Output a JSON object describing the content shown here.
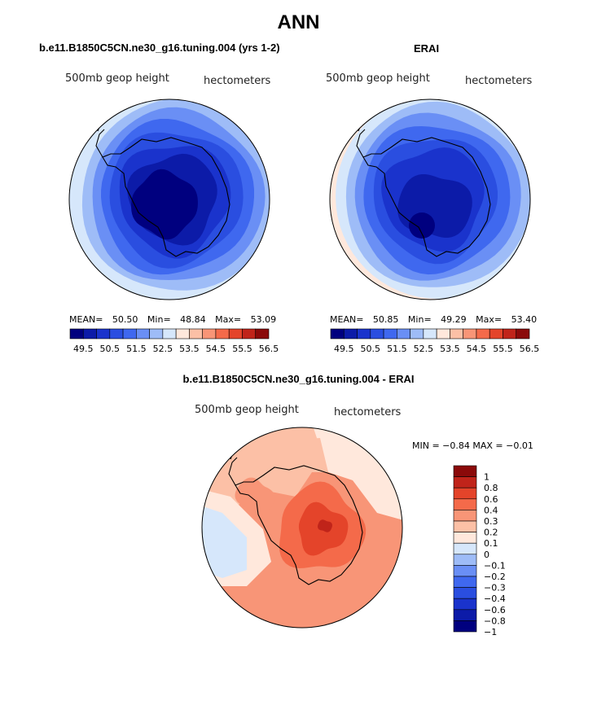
{
  "figure": {
    "title": "ANN",
    "diff_title": "b.e11.B1850C5CN.ne30_g16.tuning.004 - ERAI"
  },
  "panels": [
    {
      "id": "model",
      "title": "b.e11.B1850C5CN.ne30_g16.tuning.004 (yrs 1-2)",
      "variable": "500mb geop height",
      "units": "hectometers",
      "stats": {
        "mean_label": "MEAN=",
        "mean": "50.50",
        "min_label": "Min=",
        "min": "48.84",
        "max_label": "Max=",
        "max": "53.09"
      }
    },
    {
      "id": "obs",
      "title": "ERAI",
      "variable": "500mb geop height",
      "units": "hectometers",
      "stats": {
        "mean_label": "MEAN=",
        "mean": "50.85",
        "min_label": "Min=",
        "min": "49.29",
        "max_label": "Max=",
        "max": "53.40"
      }
    },
    {
      "id": "diff",
      "variable": "500mb geop height",
      "units": "hectometers",
      "stats_text": "MIN =   −0.84  MAX =   −0.01"
    }
  ],
  "chart_data": [
    {
      "type": "heatmap",
      "projection": "polar-stereographic-south",
      "title": "b.e11.B1850C5CN.ne30_g16.tuning.004 (yrs 1-2)",
      "variable": "500mb geop height",
      "units": "hectometers",
      "mean": 50.5,
      "min": 48.84,
      "max": 53.09,
      "contour_levels": [
        49.5,
        50,
        50.5,
        51,
        51.5,
        52,
        52.5,
        53,
        53.5,
        54,
        54.5,
        55,
        55.5,
        56,
        56.5
      ],
      "colorbar_tick_labels": [
        "49.5",
        "50.5",
        "51.5",
        "52.5",
        "53.5",
        "54.5",
        "55.5",
        "56.5"
      ],
      "colorbar_orientation": "horizontal"
    },
    {
      "type": "heatmap",
      "projection": "polar-stereographic-south",
      "title": "ERAI",
      "variable": "500mb geop height",
      "units": "hectometers",
      "mean": 50.85,
      "min": 49.29,
      "max": 53.4,
      "contour_levels": [
        49.5,
        50,
        50.5,
        51,
        51.5,
        52,
        52.5,
        53,
        53.5,
        54,
        54.5,
        55,
        55.5,
        56,
        56.5
      ],
      "colorbar_tick_labels": [
        "49.5",
        "50.5",
        "51.5",
        "52.5",
        "53.5",
        "54.5",
        "55.5",
        "56.5"
      ],
      "colorbar_orientation": "horizontal"
    },
    {
      "type": "heatmap",
      "projection": "polar-stereographic-south",
      "title": "b.e11.B1850C5CN.ne30_g16.tuning.004 - ERAI",
      "variable": "500mb geop height",
      "units": "hectometers",
      "min": -0.84,
      "max": -0.01,
      "contour_levels": [
        -1,
        -0.8,
        -0.6,
        -0.4,
        -0.3,
        -0.2,
        -0.1,
        0,
        0.1,
        0.2,
        0.3,
        0.4,
        0.6,
        0.8,
        1
      ],
      "colorbar_tick_labels": [
        "1",
        "0.8",
        "0.6",
        "0.4",
        "0.3",
        "0.2",
        "0.1",
        "0",
        "−0.1",
        "−0.2",
        "−0.3",
        "−0.4",
        "−0.6",
        "−0.8",
        "−1"
      ],
      "colorbar_orientation": "vertical"
    }
  ],
  "colors": {
    "abs_scale": [
      "#00007f",
      "#0c1ba8",
      "#1a33cc",
      "#2a4ee0",
      "#3f68ef",
      "#6a8ff5",
      "#9ebcf7",
      "#d6e7fb",
      "#ffe8dc",
      "#fcc0a6",
      "#f89577",
      "#f46a4a",
      "#e4442a",
      "#c0241a",
      "#8b0a0a"
    ],
    "diff_scale": [
      "#8b0a0a",
      "#c0241a",
      "#e4442a",
      "#f46a4a",
      "#f89577",
      "#fcc0a6",
      "#ffe8dc",
      "#d6e7fb",
      "#9ebcf7",
      "#6a8ff5",
      "#3f68ef",
      "#2a4ee0",
      "#1a33cc",
      "#0c1ba8",
      "#00007f"
    ]
  }
}
